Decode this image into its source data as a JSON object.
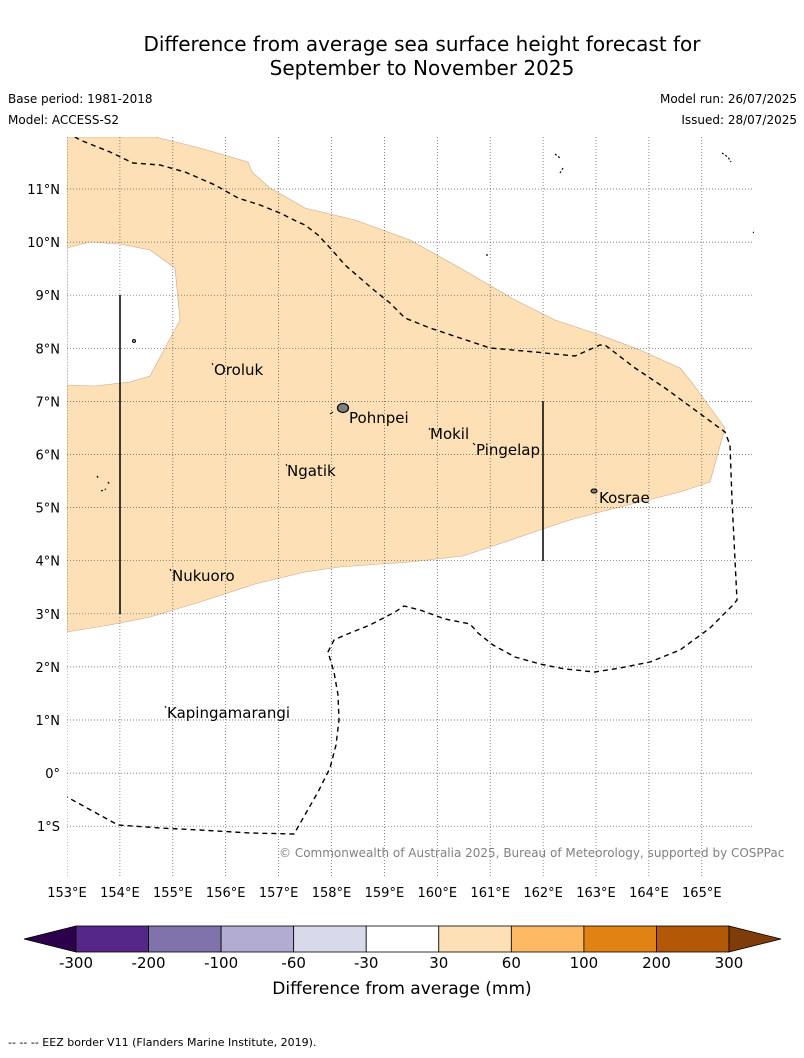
{
  "title_line1": "Difference from average sea surface height forecast for",
  "title_line2": "September to November 2025",
  "base_period": "Base period: 1981-2018",
  "model": "Model: ACCESS-S2",
  "model_run": "Model run: 26/07/2025",
  "issued": "Issued: 28/07/2025",
  "copyright": "© Commonwealth of Australia 2025, Bureau of Meteorology, supported by COSPPac",
  "footnote": "-- -- -- EEZ border V11 (Flanders Marine Institute, 2019).",
  "map": {
    "lat_labels": [
      "11°N",
      "10°N",
      "9°N",
      "8°N",
      "7°N",
      "6°N",
      "5°N",
      "4°N",
      "3°N",
      "2°N",
      "1°N",
      "0°",
      "1°S"
    ],
    "lon_labels": [
      "153°E",
      "154°E",
      "155°E",
      "156°E",
      "157°E",
      "158°E",
      "159°E",
      "160°E",
      "161°E",
      "162°E",
      "163°E",
      "164°E",
      "165°E"
    ],
    "places": [
      "Oroluk",
      "Pohnpei",
      "Mokil",
      "Ngatik",
      "Pingelap",
      "Kosrae",
      "Nukuoro",
      "Kapingamarangi"
    ],
    "anomaly_fill_color": "#fde0b6",
    "anomaly_category": "30 to 60"
  },
  "colorbar": {
    "title": "Difference from average (mm)",
    "tick_labels": [
      "-300",
      "-200",
      "-100",
      "-60",
      "-30",
      "30",
      "60",
      "100",
      "200",
      "300"
    ],
    "colors": [
      "#2d004b",
      "#542788",
      "#8073ac",
      "#b2abd2",
      "#d8daeb",
      "#ffffff",
      "#fee0b6",
      "#fdb863",
      "#e08214",
      "#b35806",
      "#7f3b08"
    ]
  }
}
